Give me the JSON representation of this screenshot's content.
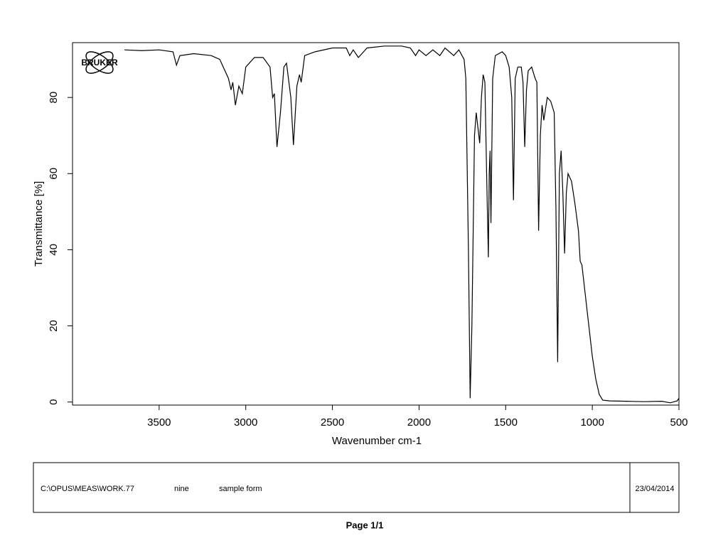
{
  "chart_data": {
    "type": "line",
    "x": [
      3700,
      3600,
      3500,
      3420,
      3400,
      3380,
      3300,
      3200,
      3150,
      3100,
      3085,
      3075,
      3060,
      3040,
      3020,
      3000,
      2950,
      2900,
      2860,
      2845,
      2835,
      2820,
      2800,
      2780,
      2765,
      2740,
      2725,
      2705,
      2690,
      2680,
      2660,
      2600,
      2500,
      2420,
      2400,
      2380,
      2350,
      2300,
      2200,
      2100,
      2050,
      2020,
      2000,
      1960,
      1920,
      1880,
      1850,
      1800,
      1770,
      1740,
      1730,
      1715,
      1705,
      1695,
      1680,
      1670,
      1660,
      1650,
      1640,
      1630,
      1620,
      1610,
      1600,
      1595,
      1590,
      1585,
      1575,
      1560,
      1520,
      1500,
      1480,
      1465,
      1455,
      1445,
      1430,
      1410,
      1400,
      1390,
      1380,
      1370,
      1350,
      1330,
      1320,
      1310,
      1300,
      1290,
      1280,
      1260,
      1240,
      1220,
      1210,
      1200,
      1190,
      1180,
      1170,
      1160,
      1150,
      1140,
      1120,
      1100,
      1080,
      1070,
      1060,
      1040,
      1020,
      1000,
      980,
      960,
      940,
      900,
      800,
      700,
      600,
      550,
      510,
      500
    ],
    "values": [
      92.5,
      92.3,
      92.5,
      92,
      88.5,
      91,
      91.5,
      91,
      90,
      85,
      82,
      84,
      78,
      83,
      81,
      88,
      90.5,
      90.5,
      88,
      80,
      81,
      67,
      76,
      88,
      89,
      80,
      67.5,
      83,
      86,
      84,
      91,
      92,
      93,
      93,
      91,
      92.5,
      90.5,
      93,
      93.5,
      93.5,
      93,
      91,
      92.5,
      91,
      92.5,
      91,
      93,
      91,
      92.5,
      90,
      85,
      40,
      1,
      20,
      70,
      76,
      72,
      68,
      80,
      86,
      84,
      60,
      38,
      60,
      66,
      47,
      85,
      91,
      92,
      91,
      88,
      80,
      53,
      85,
      88,
      88,
      84,
      67,
      82,
      87,
      88,
      85,
      84,
      45,
      70,
      78,
      74,
      80,
      79,
      76,
      51,
      10.5,
      60,
      66,
      55,
      39,
      55,
      60,
      58,
      52,
      45,
      37,
      36,
      28,
      20,
      12,
      6,
      2,
      0.5,
      0.3,
      0.2,
      0.1,
      0.2,
      -0.2,
      0.3,
      1
    ],
    "color": "#000000",
    "xlim": [
      4000,
      500
    ],
    "ylim": [
      -0.8,
      94.4
    ],
    "xticks": [
      3500,
      3000,
      2500,
      2000,
      1500,
      1000,
      500
    ],
    "yticks": [
      0,
      20,
      40,
      60,
      80
    ],
    "x_label": "Wavenumber cm-1",
    "y_label": "Transmittance [%]"
  },
  "logo": "BRUKER",
  "footer": {
    "file": "C:\\OPUS\\MEAS\\WORK.77",
    "name": "nine",
    "form": "sample form",
    "date": "23/04/2014"
  },
  "page": "Page 1/1"
}
